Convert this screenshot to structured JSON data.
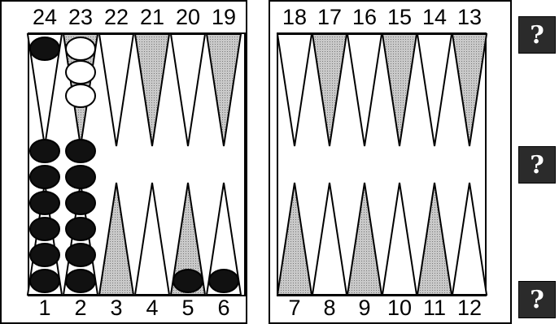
{
  "board": {
    "point_numbers_top": [
      "24",
      "23",
      "22",
      "21",
      "20",
      "19",
      "18",
      "17",
      "16",
      "15",
      "14",
      "13"
    ],
    "point_numbers_bottom": [
      "1",
      "2",
      "3",
      "4",
      "5",
      "6",
      "7",
      "8",
      "9",
      "10",
      "11",
      "12"
    ],
    "checkers": {
      "black": {
        "1": 6,
        "2": 6,
        "5": 1,
        "6": 1,
        "24": 1
      },
      "white": {
        "23": 3
      }
    }
  },
  "buttons": {
    "help_1": "?",
    "help_2": "?",
    "help_3": "?"
  },
  "colors": {
    "black_checker": "#111111",
    "white_checker": "#ffffff",
    "shaded_point": "#b8b8b8",
    "plain_point": "#ffffff"
  }
}
